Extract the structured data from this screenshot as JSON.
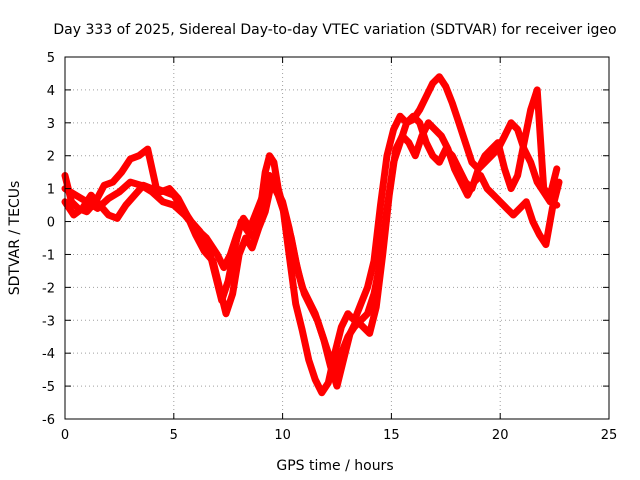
{
  "chart_data": {
    "type": "scatter",
    "title": "Day 333 of 2025, Sidereal Day-to-day VTEC variation (SDTVAR) for receiver igeo",
    "xlabel": "GPS time / hours",
    "ylabel": "SDTVAR / TECUs",
    "xlim": [
      0,
      25
    ],
    "ylim": [
      -6,
      5
    ],
    "xticks": [
      0,
      5,
      10,
      15,
      20,
      25
    ],
    "yticks": [
      -6,
      -5,
      -4,
      -3,
      -2,
      -1,
      0,
      1,
      2,
      3,
      4,
      5
    ],
    "grid": true,
    "marker": "plus",
    "color": "#ff0000",
    "series": [
      {
        "x": [
          0,
          0.3,
          0.6,
          1.0,
          1.4,
          1.8,
          2.2,
          2.6,
          3.0,
          3.4,
          3.8,
          4.2,
          4.6,
          5.0,
          5.4,
          5.8,
          6.2,
          6.6,
          6.9,
          7.2,
          7.5,
          7.8,
          8.1,
          8.4,
          8.7,
          9.0,
          9.2,
          9.4,
          9.6,
          9.8,
          10.0,
          10.3,
          10.6,
          10.9,
          11.2,
          11.5,
          11.8,
          12.1,
          12.4,
          12.7,
          13.0,
          13.3,
          13.6,
          13.9,
          14.2,
          14.5,
          14.8,
          15.1,
          15.4,
          15.7,
          16.0,
          16.3,
          16.6,
          16.9,
          17.2,
          17.5,
          17.8,
          18.1,
          18.4,
          18.7,
          19.0,
          19.3,
          19.6,
          19.9,
          20.2,
          20.5,
          20.8,
          21.1,
          21.4,
          21.7,
          22.0,
          22.3,
          22.6
        ],
        "y": [
          1.4,
          0.6,
          0.4,
          0.3,
          0.6,
          1.1,
          1.2,
          1.5,
          1.9,
          2.0,
          2.2,
          1.0,
          0.9,
          0.8,
          0.4,
          0.0,
          -0.3,
          -0.8,
          -1.6,
          -2.4,
          -1.8,
          -0.8,
          0.0,
          -0.3,
          -0.5,
          0.5,
          1.5,
          2.0,
          1.8,
          1.0,
          0.5,
          -1.0,
          -2.5,
          -3.3,
          -4.2,
          -4.8,
          -5.2,
          -4.9,
          -4.0,
          -3.2,
          -2.8,
          -3.0,
          -2.5,
          -2.0,
          -1.2,
          0.5,
          2.0,
          2.8,
          3.2,
          3.0,
          3.1,
          3.4,
          3.8,
          4.2,
          4.4,
          4.1,
          3.6,
          3.0,
          2.4,
          1.8,
          1.6,
          1.8,
          2.0,
          2.2,
          2.6,
          3.0,
          2.8,
          2.2,
          1.8,
          1.2,
          0.9,
          0.6,
          0.5
        ]
      },
      {
        "x": [
          0,
          0.4,
          0.8,
          1.2,
          1.6,
          2.0,
          2.4,
          2.8,
          3.2,
          3.6,
          4.0,
          4.4,
          4.8,
          5.2,
          5.6,
          6.0,
          6.4,
          6.8,
          7.1,
          7.4,
          7.7,
          8.0,
          8.3,
          8.6,
          8.9,
          9.2,
          9.5,
          9.8,
          10.1,
          10.4,
          10.7,
          11.0,
          11.3,
          11.6,
          11.9,
          12.2,
          12.5,
          12.8,
          13.1,
          13.4,
          13.7,
          14.0,
          14.3,
          14.6,
          14.9,
          15.2,
          15.5,
          15.8,
          16.1,
          16.4,
          16.7,
          17.0,
          17.3,
          17.6,
          17.9,
          18.2,
          18.5,
          18.8,
          19.1,
          19.4,
          19.7,
          20.0,
          20.3,
          20.6,
          20.9,
          21.2,
          21.5,
          21.8,
          22.1,
          22.4,
          22.7
        ],
        "y": [
          0.6,
          0.2,
          0.4,
          0.8,
          0.5,
          0.2,
          0.1,
          0.5,
          0.8,
          1.1,
          1.0,
          0.9,
          1.0,
          0.7,
          0.2,
          -0.4,
          -0.9,
          -1.2,
          -2.0,
          -2.8,
          -2.2,
          -1.0,
          -0.5,
          -0.8,
          -0.2,
          0.3,
          1.2,
          0.8,
          0.2,
          -0.5,
          -1.5,
          -2.2,
          -2.6,
          -3.0,
          -3.6,
          -4.4,
          -5.0,
          -4.2,
          -3.4,
          -3.0,
          -3.2,
          -3.4,
          -2.6,
          -1.0,
          0.8,
          2.2,
          2.6,
          2.4,
          2.0,
          2.6,
          3.0,
          2.8,
          2.6,
          2.2,
          1.6,
          1.2,
          0.8,
          1.2,
          1.4,
          1.0,
          0.8,
          0.6,
          0.4,
          0.2,
          0.4,
          0.6,
          0.0,
          -0.4,
          -0.7,
          0.4,
          1.2
        ]
      },
      {
        "x": [
          0,
          0.5,
          1.0,
          1.5,
          2.0,
          2.5,
          3.0,
          3.5,
          4.0,
          4.5,
          5.0,
          5.5,
          6.0,
          6.5,
          7.0,
          7.3,
          7.6,
          7.9,
          8.2,
          8.5,
          8.8,
          9.1,
          9.4,
          9.7,
          10.0,
          10.3,
          10.6,
          10.9,
          11.2,
          11.5,
          11.8,
          12.1,
          12.4,
          12.7,
          13.0,
          13.3,
          13.6,
          13.9,
          14.2,
          14.5,
          14.8,
          15.1,
          15.4,
          15.7,
          16.0,
          16.3,
          16.6,
          16.9,
          17.2,
          17.5,
          17.8,
          18.1,
          18.4,
          18.7,
          19.0,
          19.3,
          19.6,
          19.9,
          20.2,
          20.5,
          20.8,
          21.1,
          21.4,
          21.7,
          22.0,
          22.3,
          22.6
        ],
        "y": [
          1.0,
          0.8,
          0.6,
          0.4,
          0.7,
          0.9,
          1.2,
          1.1,
          0.9,
          0.6,
          0.5,
          0.2,
          -0.2,
          -0.5,
          -1.0,
          -1.4,
          -1.0,
          -0.4,
          0.1,
          -0.2,
          0.3,
          0.8,
          1.4,
          1.0,
          0.6,
          -0.2,
          -1.2,
          -2.0,
          -2.4,
          -2.8,
          -3.4,
          -4.0,
          -4.6,
          -4.0,
          -3.5,
          -3.2,
          -3.0,
          -2.8,
          -2.2,
          -1.2,
          0.4,
          1.8,
          2.4,
          3.0,
          3.2,
          3.0,
          2.4,
          2.0,
          1.8,
          2.2,
          2.0,
          1.6,
          1.2,
          1.0,
          1.6,
          2.0,
          2.2,
          2.4,
          1.6,
          1.0,
          1.4,
          2.4,
          3.4,
          4.0,
          1.0,
          0.8,
          1.6
        ]
      }
    ]
  }
}
